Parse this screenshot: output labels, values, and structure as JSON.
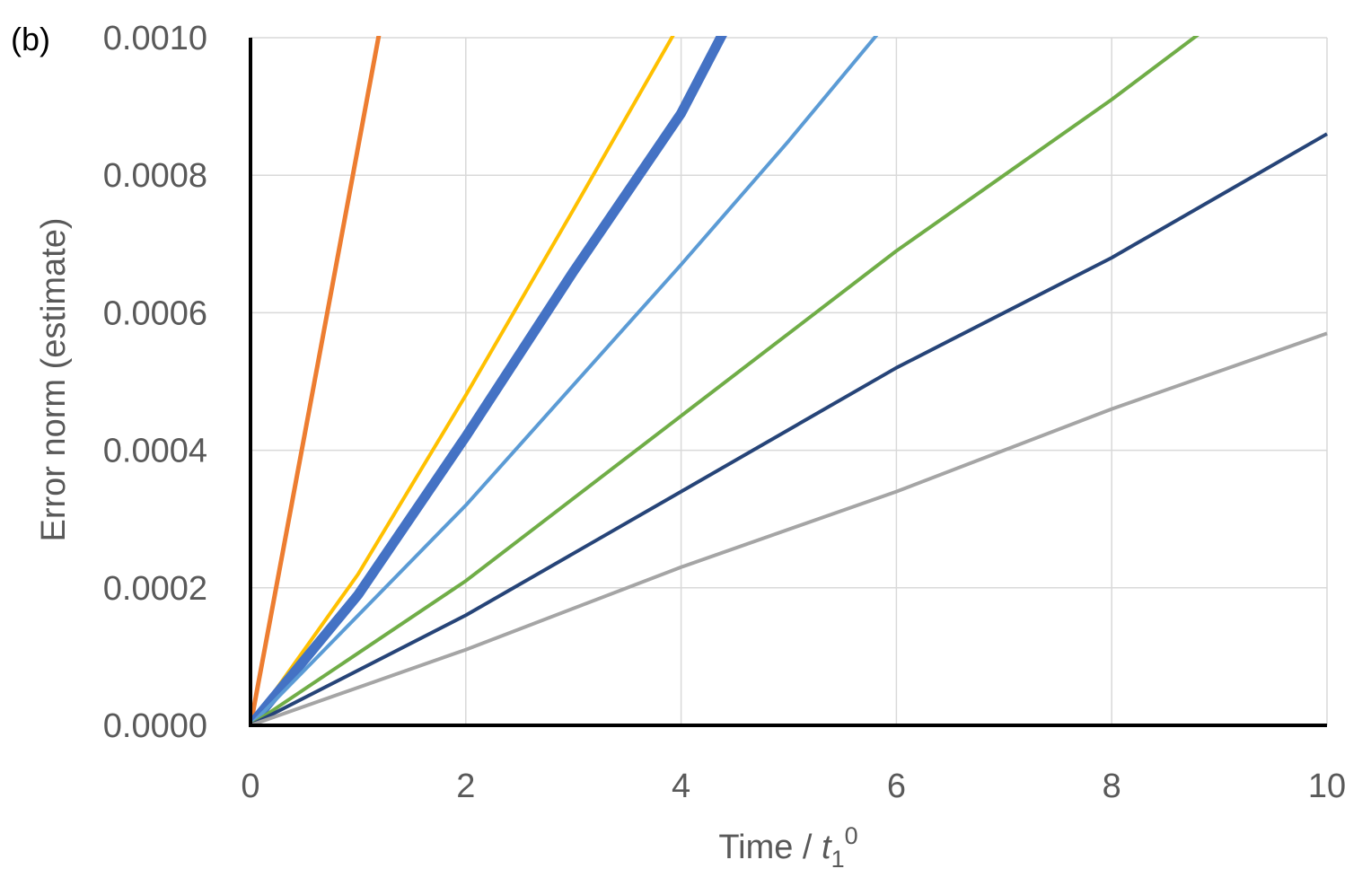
{
  "panel_label": "(b)",
  "chart_data": {
    "type": "line",
    "xlabel": {
      "text": "Time / ",
      "var": "t",
      "sub": "1",
      "sup": "0"
    },
    "ylabel": "Error norm (estimate)",
    "xlim": [
      0,
      10
    ],
    "ylim": [
      0,
      0.001
    ],
    "x_ticks": [
      "0",
      "2",
      "4",
      "6",
      "8",
      "10"
    ],
    "y_ticks": [
      "0.0000",
      "0.0002",
      "0.0004",
      "0.0006",
      "0.0008",
      "0.0010"
    ],
    "grid": true,
    "series": [
      {
        "color": "#ED7D31",
        "width": 5,
        "x": [
          0,
          0.5,
          1.2
        ],
        "y": [
          0,
          0.00042,
          0.00101
        ]
      },
      {
        "color": "#FFC000",
        "width": 4,
        "x": [
          0,
          1,
          2,
          3,
          3.95
        ],
        "y": [
          0,
          0.00022,
          0.00048,
          0.00075,
          0.00101
        ]
      },
      {
        "color": "#4472C4",
        "width": 11,
        "x": [
          0,
          1,
          2,
          3,
          4,
          4.4
        ],
        "y": [
          0,
          0.00019,
          0.00042,
          0.00066,
          0.00089,
          0.00101
        ]
      },
      {
        "color": "#5B9BD5",
        "width": 4,
        "x": [
          0,
          2,
          4,
          5,
          5.85
        ],
        "y": [
          0,
          0.00032,
          0.00067,
          0.00085,
          0.00101
        ]
      },
      {
        "color": "#70AD47",
        "width": 4,
        "x": [
          0,
          2,
          4,
          6,
          8,
          8.85
        ],
        "y": [
          0,
          0.00021,
          0.00045,
          0.00069,
          0.00091,
          0.00101
        ]
      },
      {
        "color": "#264478",
        "width": 4,
        "x": [
          0,
          2,
          4,
          6,
          8,
          10
        ],
        "y": [
          0,
          0.00016,
          0.00034,
          0.00052,
          0.00068,
          0.00086
        ]
      },
      {
        "color": "#A5A5A5",
        "width": 4,
        "x": [
          0,
          2,
          4,
          6,
          8,
          10
        ],
        "y": [
          0,
          0.00011,
          0.00023,
          0.00034,
          0.00046,
          0.00057
        ]
      }
    ]
  }
}
